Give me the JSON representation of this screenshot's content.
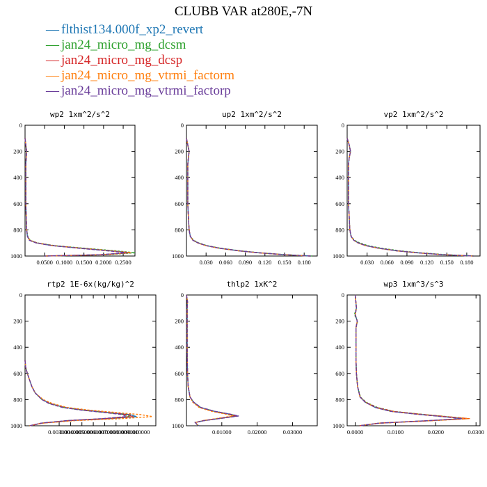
{
  "title": "CLUBB VAR at280E,-7N",
  "colors": [
    "#1f77b4",
    "#2ca02c",
    "#d62728",
    "#ff7f0e",
    "#6a3d9a"
  ],
  "legend": [
    {
      "label": "flthist134.000f_xp2_revert",
      "color": "#1f77b4"
    },
    {
      "label": "jan24_micro_mg_dcsm",
      "color": "#2ca02c"
    },
    {
      "label": "jan24_micro_mg_dcsp",
      "color": "#d62728"
    },
    {
      "label": "jan24_micro_mg_vtrmi_factorm",
      "color": "#ff7f0e"
    },
    {
      "label": "jan24_micro_mg_vtrmi_factorp",
      "color": "#6a3d9a"
    }
  ],
  "chart_data": [
    {
      "type": "line",
      "title": "wp2  1xm^2/s^2",
      "xlim": [
        0,
        0.28
      ],
      "xticks": [
        0.05,
        0.1,
        0.15,
        0.2,
        0.25
      ],
      "xtick_labels": [
        "0.0500",
        "0.1000",
        "0.1500",
        "0.2000",
        "0.2500"
      ],
      "ylim": [
        0,
        1000
      ],
      "yticks": [
        0,
        200,
        400,
        600,
        800,
        1000
      ],
      "y": [
        100,
        150,
        200,
        250,
        300,
        400,
        500,
        600,
        700,
        800,
        850,
        880,
        900,
        920,
        940,
        960,
        975,
        990,
        1000
      ],
      "series": [
        {
          "x": [
            0.0,
            0.002,
            0.004,
            0.003,
            0.002,
            0.002,
            0.002,
            0.002,
            0.003,
            0.004,
            0.006,
            0.012,
            0.03,
            0.07,
            0.14,
            0.22,
            0.27,
            0.2,
            0.05
          ]
        },
        {
          "x": [
            0.0,
            0.002,
            0.004,
            0.003,
            0.002,
            0.002,
            0.002,
            0.002,
            0.003,
            0.004,
            0.007,
            0.013,
            0.032,
            0.075,
            0.15,
            0.23,
            0.28,
            0.21,
            0.05
          ]
        },
        {
          "x": [
            0.0,
            0.002,
            0.004,
            0.003,
            0.002,
            0.002,
            0.002,
            0.002,
            0.003,
            0.004,
            0.006,
            0.012,
            0.03,
            0.07,
            0.14,
            0.215,
            0.265,
            0.2,
            0.05
          ]
        },
        {
          "x": [
            0.0,
            0.002,
            0.004,
            0.003,
            0.002,
            0.002,
            0.002,
            0.002,
            0.003,
            0.004,
            0.006,
            0.012,
            0.03,
            0.07,
            0.14,
            0.22,
            0.27,
            0.2,
            0.05
          ]
        },
        {
          "x": [
            0.0,
            0.002,
            0.004,
            0.003,
            0.002,
            0.002,
            0.002,
            0.002,
            0.003,
            0.004,
            0.006,
            0.011,
            0.028,
            0.068,
            0.135,
            0.21,
            0.26,
            0.19,
            0.05
          ]
        }
      ]
    },
    {
      "type": "line",
      "title": "up2  1xm^2/s^2",
      "xlim": [
        0,
        0.2
      ],
      "xticks": [
        0.03,
        0.06,
        0.09,
        0.12,
        0.15,
        0.18
      ],
      "xtick_labels": [
        "0.030",
        "0.060",
        "0.090",
        "0.120",
        "0.150",
        "0.180"
      ],
      "ylim": [
        0,
        1000
      ],
      "yticks": [
        0,
        200,
        400,
        600,
        800,
        1000
      ],
      "y": [
        100,
        150,
        200,
        250,
        300,
        400,
        500,
        600,
        700,
        800,
        850,
        880,
        900,
        920,
        940,
        960,
        975,
        990,
        1000
      ],
      "series": [
        {
          "x": [
            0.0,
            0.002,
            0.004,
            0.003,
            0.002,
            0.002,
            0.002,
            0.002,
            0.003,
            0.004,
            0.006,
            0.01,
            0.018,
            0.03,
            0.05,
            0.08,
            0.11,
            0.15,
            0.19
          ]
        },
        {
          "x": [
            0.0,
            0.002,
            0.004,
            0.003,
            0.002,
            0.002,
            0.002,
            0.002,
            0.003,
            0.004,
            0.006,
            0.011,
            0.019,
            0.031,
            0.052,
            0.082,
            0.112,
            0.152,
            0.192
          ]
        },
        {
          "x": [
            0.0,
            0.002,
            0.004,
            0.003,
            0.002,
            0.002,
            0.002,
            0.002,
            0.003,
            0.004,
            0.006,
            0.01,
            0.018,
            0.03,
            0.05,
            0.08,
            0.11,
            0.15,
            0.19
          ]
        },
        {
          "x": [
            0.0,
            0.002,
            0.004,
            0.003,
            0.002,
            0.002,
            0.002,
            0.002,
            0.003,
            0.004,
            0.006,
            0.01,
            0.017,
            0.029,
            0.049,
            0.079,
            0.109,
            0.149,
            0.189
          ]
        },
        {
          "x": [
            0.0,
            0.002,
            0.004,
            0.003,
            0.002,
            0.002,
            0.002,
            0.002,
            0.003,
            0.004,
            0.006,
            0.01,
            0.018,
            0.03,
            0.05,
            0.08,
            0.11,
            0.15,
            0.19
          ]
        }
      ]
    },
    {
      "type": "line",
      "title": "vp2  1xm^2/s^2",
      "xlim": [
        0,
        0.2
      ],
      "xticks": [
        0.03,
        0.06,
        0.09,
        0.12,
        0.15,
        0.18
      ],
      "xtick_labels": [
        "0.030",
        "0.060",
        "0.090",
        "0.120",
        "0.150",
        "0.180"
      ],
      "ylim": [
        0,
        1000
      ],
      "yticks": [
        0,
        200,
        400,
        600,
        800,
        1000
      ],
      "y": [
        100,
        150,
        200,
        250,
        300,
        400,
        500,
        600,
        700,
        800,
        850,
        880,
        900,
        920,
        940,
        960,
        975,
        990,
        1000
      ],
      "series": [
        {
          "x": [
            0.0,
            0.003,
            0.005,
            0.003,
            0.002,
            0.002,
            0.002,
            0.002,
            0.003,
            0.004,
            0.006,
            0.01,
            0.017,
            0.028,
            0.047,
            0.075,
            0.105,
            0.145,
            0.19
          ]
        },
        {
          "x": [
            0.0,
            0.003,
            0.005,
            0.003,
            0.002,
            0.002,
            0.002,
            0.002,
            0.003,
            0.004,
            0.006,
            0.011,
            0.019,
            0.031,
            0.051,
            0.079,
            0.109,
            0.149,
            0.192
          ]
        },
        {
          "x": [
            0.0,
            0.003,
            0.005,
            0.003,
            0.002,
            0.002,
            0.002,
            0.002,
            0.003,
            0.004,
            0.006,
            0.01,
            0.017,
            0.028,
            0.047,
            0.075,
            0.105,
            0.145,
            0.19
          ]
        },
        {
          "x": [
            0.0,
            0.003,
            0.005,
            0.003,
            0.002,
            0.002,
            0.002,
            0.002,
            0.003,
            0.004,
            0.006,
            0.01,
            0.016,
            0.027,
            0.046,
            0.074,
            0.104,
            0.144,
            0.188
          ]
        },
        {
          "x": [
            0.0,
            0.003,
            0.005,
            0.003,
            0.002,
            0.002,
            0.002,
            0.002,
            0.003,
            0.004,
            0.006,
            0.01,
            0.017,
            0.028,
            0.047,
            0.075,
            0.105,
            0.145,
            0.19
          ]
        }
      ]
    },
    {
      "type": "line",
      "title": "rtp2  1E-6x(kg/kg)^2",
      "xlim": [
        0,
        0.0115
      ],
      "xticks": [
        0.003,
        0.004,
        0.005,
        0.006,
        0.007,
        0.008,
        0.009,
        0.01
      ],
      "xtick_labels": [
        "0.003000",
        "0.004000",
        "0.005000",
        "0.006000",
        "0.007000",
        "0.008000",
        "0.009000",
        "0.010000"
      ],
      "ylim": [
        0,
        1000
      ],
      "yticks": [
        0,
        200,
        400,
        600,
        800,
        1000
      ],
      "y": [
        500,
        550,
        600,
        650,
        700,
        750,
        800,
        830,
        860,
        880,
        900,
        915,
        930,
        945,
        960,
        980,
        1000
      ],
      "series": [
        {
          "x": [
            0.0,
            5e-05,
            0.0002,
            0.0004,
            0.0006,
            0.0009,
            0.0015,
            0.0022,
            0.0035,
            0.0052,
            0.0075,
            0.0092,
            0.0098,
            0.0075,
            0.004,
            0.0015,
            0.0004
          ]
        },
        {
          "x": [
            0.0,
            5e-05,
            0.0002,
            0.0004,
            0.0006,
            0.0009,
            0.0015,
            0.0022,
            0.0034,
            0.005,
            0.0073,
            0.0088,
            0.0092,
            0.007,
            0.0038,
            0.0015,
            0.0004
          ]
        },
        {
          "x": [
            0.0,
            5e-05,
            0.0002,
            0.0004,
            0.0006,
            0.0009,
            0.0015,
            0.0022,
            0.0034,
            0.0051,
            0.0074,
            0.009,
            0.0095,
            0.0072,
            0.0039,
            0.0015,
            0.0004
          ]
        },
        {
          "x": [
            0.0,
            5e-05,
            0.0002,
            0.0004,
            0.0006,
            0.0009,
            0.0016,
            0.0024,
            0.0037,
            0.0056,
            0.0082,
            0.0102,
            0.0112,
            0.0085,
            0.0045,
            0.0016,
            0.0004
          ]
        },
        {
          "x": [
            0.0,
            5e-05,
            0.0002,
            0.0004,
            0.0006,
            0.0009,
            0.0015,
            0.0021,
            0.0033,
            0.0049,
            0.0071,
            0.0086,
            0.0089,
            0.0068,
            0.0037,
            0.0014,
            0.0004
          ]
        }
      ]
    },
    {
      "type": "line",
      "title": "thlp2  1xK^2",
      "xlim": [
        0,
        0.037
      ],
      "xticks": [
        0.01,
        0.02,
        0.03
      ],
      "xtick_labels": [
        "0.01000",
        "0.02000",
        "0.03000"
      ],
      "ylim": [
        0,
        1000
      ],
      "yticks": [
        0,
        200,
        400,
        600,
        800,
        1000
      ],
      "y": [
        0,
        50,
        100,
        200,
        400,
        600,
        700,
        780,
        820,
        860,
        890,
        910,
        925,
        940,
        960,
        975,
        990,
        1000
      ],
      "series": [
        {
          "x": [
            0.0,
            0.0003,
            0.0002,
            0.0002,
            0.0002,
            0.0003,
            0.0005,
            0.001,
            0.002,
            0.004,
            0.008,
            0.012,
            0.0145,
            0.0105,
            0.005,
            0.0025,
            0.003,
            0.0035
          ]
        },
        {
          "x": [
            0.0,
            0.0003,
            0.0002,
            0.0002,
            0.0002,
            0.0003,
            0.0005,
            0.001,
            0.002,
            0.0039,
            0.0078,
            0.0118,
            0.0142,
            0.0103,
            0.0049,
            0.0025,
            0.003,
            0.0035
          ]
        },
        {
          "x": [
            0.0,
            0.0003,
            0.0002,
            0.0002,
            0.0002,
            0.0003,
            0.0005,
            0.001,
            0.002,
            0.0039,
            0.0077,
            0.0116,
            0.014,
            0.0102,
            0.0049,
            0.0025,
            0.003,
            0.0035
          ]
        },
        {
          "x": [
            0.0,
            0.0003,
            0.0002,
            0.0002,
            0.0002,
            0.0003,
            0.0005,
            0.001,
            0.0018,
            0.0036,
            0.0072,
            0.011,
            0.0132,
            0.0096,
            0.0047,
            0.0025,
            0.003,
            0.0035
          ]
        },
        {
          "x": [
            0.0,
            0.0003,
            0.0002,
            0.0002,
            0.0002,
            0.0003,
            0.0005,
            0.001,
            0.0021,
            0.0041,
            0.0081,
            0.0122,
            0.0148,
            0.0108,
            0.0051,
            0.0025,
            0.003,
            0.0035
          ]
        }
      ]
    },
    {
      "type": "line",
      "title": "wp3  1xm^3/s^3",
      "xlim": [
        -0.002,
        0.031
      ],
      "xticks": [
        0.0,
        0.01,
        0.02,
        0.03
      ],
      "xtick_labels": [
        "0.0000",
        "0.0100",
        "0.0200",
        "0.0300"
      ],
      "ylim": [
        0,
        1000
      ],
      "yticks": [
        0,
        200,
        400,
        600,
        800,
        1000
      ],
      "y": [
        0,
        100,
        150,
        200,
        250,
        300,
        400,
        500,
        600,
        700,
        780,
        820,
        860,
        890,
        910,
        930,
        945,
        960,
        980,
        1000
      ],
      "series": [
        {
          "x": [
            0.0,
            0.0003,
            0.0,
            0.0005,
            0.0002,
            0.0002,
            0.0002,
            0.0002,
            0.0003,
            0.0006,
            0.0012,
            0.0025,
            0.005,
            0.009,
            0.015,
            0.022,
            0.027,
            0.019,
            0.006,
            0.001
          ]
        },
        {
          "x": [
            0.0,
            0.0003,
            -0.0002,
            0.0006,
            0.0002,
            0.0002,
            0.0002,
            0.0002,
            0.0003,
            0.0006,
            0.0013,
            0.0027,
            0.0055,
            0.0096,
            0.0158,
            0.0228,
            0.028,
            0.0195,
            0.006,
            0.001
          ]
        },
        {
          "x": [
            0.0,
            0.0003,
            0.0,
            0.0005,
            0.0002,
            0.0002,
            0.0002,
            0.0002,
            0.0003,
            0.0006,
            0.0012,
            0.0026,
            0.0053,
            0.0094,
            0.0156,
            0.0226,
            0.0282,
            0.0192,
            0.006,
            0.001
          ]
        },
        {
          "x": [
            0.0,
            0.0003,
            0.0,
            0.0005,
            0.0002,
            0.0002,
            0.0002,
            0.0002,
            0.0003,
            0.0006,
            0.0012,
            0.0025,
            0.005,
            0.009,
            0.015,
            0.022,
            0.0285,
            0.0198,
            0.006,
            0.001
          ]
        },
        {
          "x": [
            0.0,
            0.0003,
            0.0,
            0.0005,
            0.0002,
            0.0002,
            0.0002,
            0.0002,
            0.0003,
            0.0006,
            0.0012,
            0.0025,
            0.005,
            0.0088,
            0.0148,
            0.0215,
            0.0265,
            0.0185,
            0.006,
            0.001
          ]
        }
      ]
    }
  ]
}
